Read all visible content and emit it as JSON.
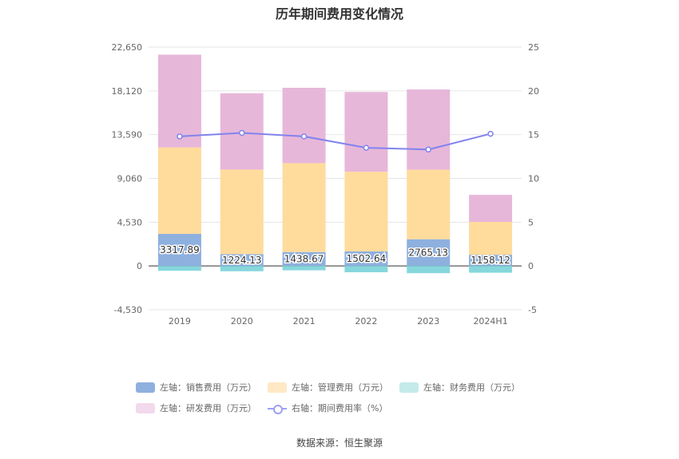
{
  "title": "历年期间费用变化情况",
  "source": "数据来源：恒生聚源",
  "legend": [
    {
      "label": "左轴：销售费用（万元）",
      "color": "#8eb0de"
    },
    {
      "label": "左轴：管理费用（万元）",
      "color": "#ffdb9c"
    },
    {
      "label": "左轴：财务费用（万元）",
      "color": "#86d7dc"
    },
    {
      "label": "左轴：研发费用（万元）",
      "color": "#e7b7d9"
    },
    {
      "label": "右轴：期间费用率（%）",
      "color": "#8183ee"
    }
  ],
  "chart_data": {
    "type": "bar",
    "stacked": true,
    "categories": [
      "2019",
      "2020",
      "2021",
      "2022",
      "2023",
      "2024H1"
    ],
    "left_axis": {
      "ticks": [
        "22,650",
        "18,120",
        "13,590",
        "9,060",
        "4,530",
        "0",
        "-4,530"
      ],
      "ylim": [
        -4530,
        22650
      ]
    },
    "right_axis": {
      "ticks": [
        "25",
        "20",
        "15",
        "10",
        "5",
        "0",
        "-5"
      ],
      "ylim": [
        -5,
        25
      ]
    },
    "series": [
      {
        "name": "左轴：销售费用（万元）",
        "axis": "left",
        "color": "#8eb0de",
        "values": [
          3317.89,
          1224.13,
          1438.67,
          1502.64,
          2765.13,
          1158.12
        ],
        "labels": [
          "3317.89",
          "1224.13",
          "1438.67",
          "1502.64",
          "2765.13",
          "1158.12"
        ]
      },
      {
        "name": "左轴：管理费用（万元）",
        "axis": "left",
        "color": "#ffdb9c",
        "values": [
          8950,
          8750,
          9200,
          8250,
          7200,
          3400
        ]
      },
      {
        "name": "左轴：财务费用（万元）",
        "axis": "left",
        "color": "#86d7dc",
        "values": [
          -500,
          -550,
          -450,
          -650,
          -750,
          -700
        ]
      },
      {
        "name": "左轴：研发费用（万元）",
        "axis": "left",
        "color": "#e7b7d9",
        "values": [
          9600,
          7900,
          7800,
          8250,
          8300,
          2800
        ]
      },
      {
        "name": "右轴：期间费用率（%）",
        "axis": "right",
        "color": "#8183ee",
        "kind": "line",
        "values": [
          14.8,
          15.2,
          14.8,
          13.5,
          13.3,
          15.1
        ]
      }
    ]
  }
}
